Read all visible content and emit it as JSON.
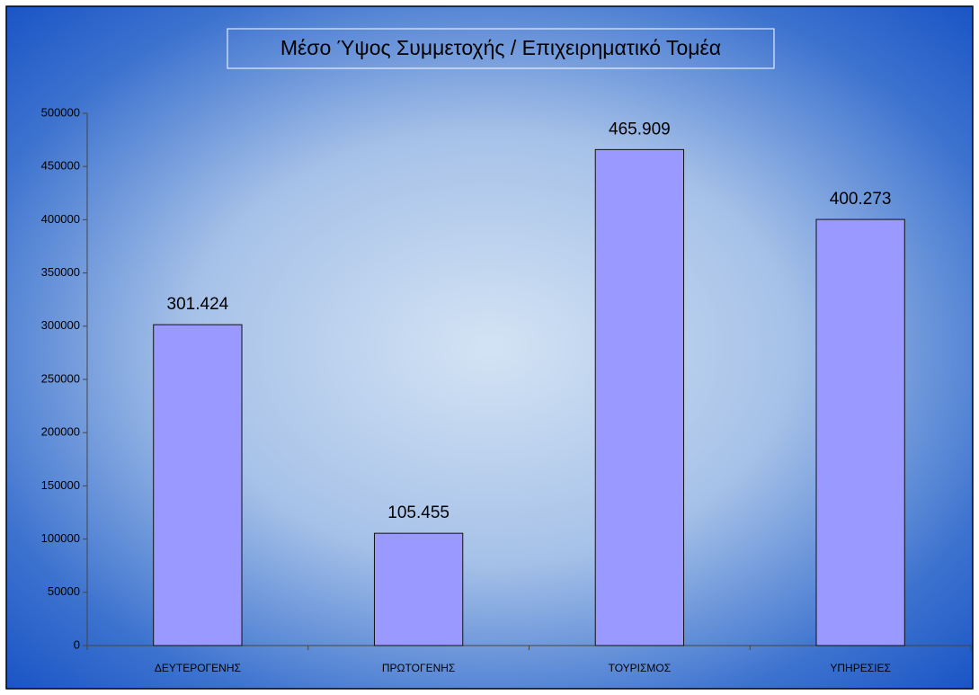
{
  "chart_data": {
    "type": "bar",
    "title": "Μέσο Ύψος Συμμετοχής / Επιχειρηματικό Τομέα",
    "categories": [
      "ΔΕΥΤΕΡΟΓΕΝΗΣ",
      "ΠΡΩΤΟΓΕΝΗΣ",
      "ΤΟΥΡΙΣΜΟΣ",
      "ΥΠΗΡΕΣΙΕΣ"
    ],
    "values": [
      301424,
      105455,
      465909,
      400273
    ],
    "value_labels": [
      "301.424",
      "105.455",
      "465.909",
      "400.273"
    ],
    "color": "#9999ff",
    "ylim": [
      0,
      500000
    ],
    "yticks": [
      0,
      50000,
      100000,
      150000,
      200000,
      250000,
      300000,
      350000,
      400000,
      450000,
      500000
    ],
    "grid": false
  }
}
